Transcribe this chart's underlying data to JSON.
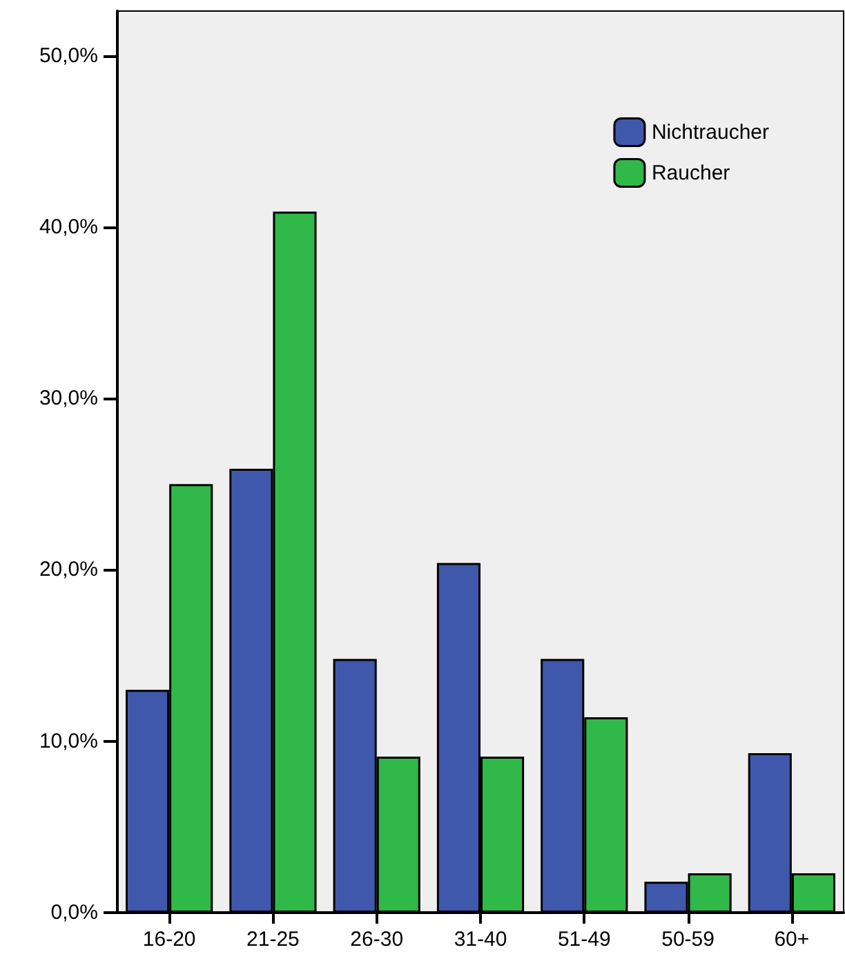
{
  "chart_data": {
    "type": "bar",
    "categories": [
      "16-20",
      "21-25",
      "26-30",
      "31-40",
      "51-49",
      "50-59",
      "60+"
    ],
    "series": [
      {
        "name": "Nichtraucher",
        "color": "#3f58ac",
        "values": [
          13.0,
          25.9,
          14.8,
          20.4,
          14.8,
          1.8,
          9.3
        ]
      },
      {
        "name": "Raucher",
        "color": "#30b848",
        "values": [
          25.0,
          40.9,
          9.1,
          9.1,
          11.4,
          2.3,
          2.3
        ]
      }
    ],
    "ylim": [
      0,
      52.6
    ],
    "yticks": [
      {
        "value": 0,
        "label": "0,0%"
      },
      {
        "value": 10,
        "label": "10,0%"
      },
      {
        "value": 20,
        "label": "20,0%"
      },
      {
        "value": 30,
        "label": "30,0%"
      },
      {
        "value": 40,
        "label": "40,0%"
      },
      {
        "value": 50,
        "label": "50,0%"
      }
    ],
    "grid": false,
    "legend": "top right"
  }
}
